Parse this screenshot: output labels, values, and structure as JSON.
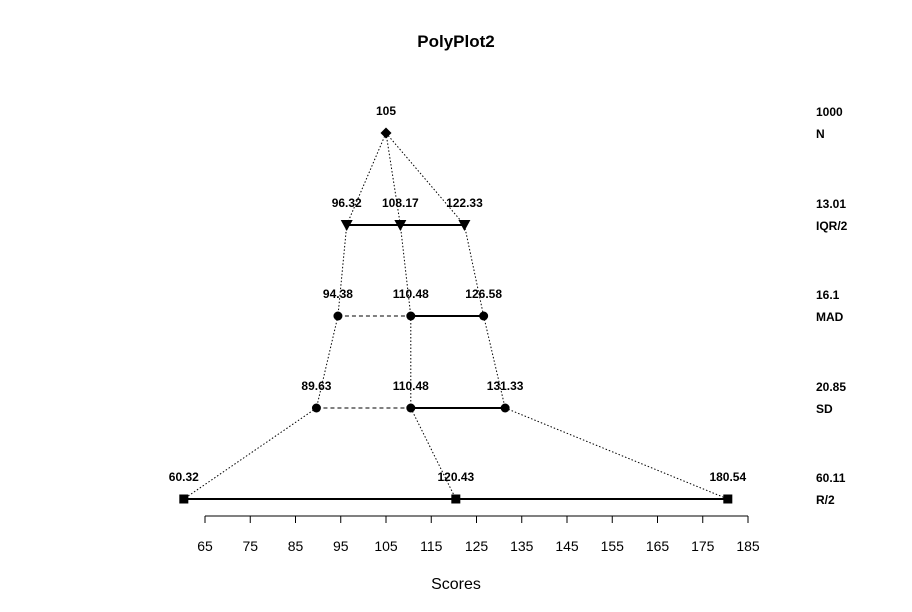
{
  "chart_data": {
    "type": "polyplot",
    "title": "PolyPlot2",
    "xlabel": "Scores",
    "xlim": [
      65,
      185
    ],
    "x_ticks": [
      "65",
      "75",
      "85",
      "95",
      "105",
      "115",
      "125",
      "135",
      "145",
      "155",
      "165",
      "175",
      "185"
    ],
    "levels": [
      {
        "key": "n",
        "stat_label": "N",
        "stat_value": "1000",
        "marker": "diamond",
        "points": [
          {
            "x": 105,
            "label": "105"
          }
        ]
      },
      {
        "key": "iqr",
        "stat_label": "IQR/2",
        "stat_value": "13.01",
        "marker": "triangle",
        "points": [
          {
            "x": 96.32,
            "label": "96.32"
          },
          {
            "x": 108.17,
            "label": "108.17"
          },
          {
            "x": 122.33,
            "label": "122.33"
          }
        ]
      },
      {
        "key": "mad",
        "stat_label": "MAD",
        "stat_value": "16.1",
        "marker": "circle",
        "points": [
          {
            "x": 94.38,
            "label": "94.38"
          },
          {
            "x": 110.48,
            "label": "110.48"
          },
          {
            "x": 126.58,
            "label": "126.58"
          }
        ]
      },
      {
        "key": "sd",
        "stat_label": "SD",
        "stat_value": "20.85",
        "marker": "circle",
        "points": [
          {
            "x": 89.63,
            "label": "89.63"
          },
          {
            "x": 110.48,
            "label": "110.48"
          },
          {
            "x": 131.33,
            "label": "131.33"
          }
        ]
      },
      {
        "key": "r",
        "stat_label": "R/2",
        "stat_value": "60.11",
        "marker": "square",
        "points": [
          {
            "x": 60.32,
            "label": "60.32"
          },
          {
            "x": 120.43,
            "label": "120.43"
          },
          {
            "x": 180.54,
            "label": "180.54"
          }
        ]
      }
    ]
  }
}
